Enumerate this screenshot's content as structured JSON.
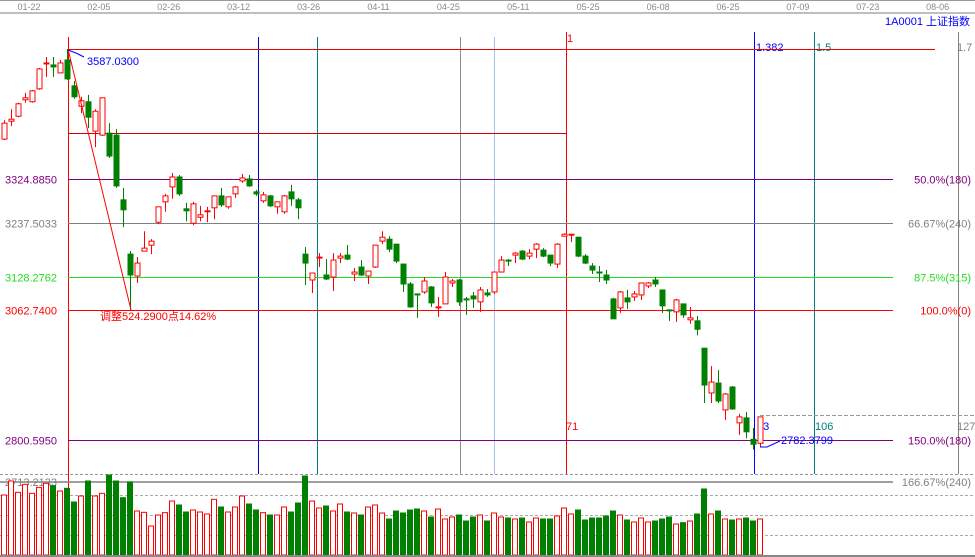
{
  "header": {
    "dates": [
      "01-22",
      "02-05",
      "02-26",
      "03-12",
      "03-26",
      "04-11",
      "04-25",
      "05-11",
      "05-25",
      "06-08",
      "06-25",
      "07-09",
      "07-23",
      "08-06"
    ],
    "symbol": "1A0001 上证指数"
  },
  "chart_data": {
    "type": "candlestick",
    "title": "1A0001 上证指数",
    "candle_fields": [
      "open",
      "close",
      "high",
      "low"
    ],
    "colors": {
      "up": "#ff0000",
      "down": "#008000",
      "annotation": "#0000ff"
    },
    "ylim": [
      2700,
      3600
    ],
    "grid": false,
    "price_levels": [
      {
        "price": 3324.885,
        "left_label": "3324.8850",
        "right_label": "50.0%(180)",
        "color": "#800080"
      },
      {
        "price": 3237.5033,
        "left_label": "3237.5033",
        "right_label": "66.67%(240)",
        "color": "#808080"
      },
      {
        "price": 3128.2762,
        "left_label": "3128.2762",
        "right_label": "87.5%(315)",
        "color": "#22dd22"
      },
      {
        "price": 3062.74,
        "left_label": "3062.7400",
        "right_label": "100.0%(0)",
        "color": "#ff0000"
      },
      {
        "price": 2800.595,
        "left_label": "2800.5950",
        "right_label": "150.0%(180)",
        "color": "#800080"
      },
      {
        "price": 2713.2133,
        "left_label": "2713.2133",
        "right_label": "166.67%(240)",
        "color": "#808080"
      }
    ],
    "time_lines": [
      {
        "top_label": "1",
        "bottom_label": "71",
        "color": "#ff0000"
      },
      {
        "top_label": "1.382",
        "bottom_label": "93",
        "color": "#0000ff"
      },
      {
        "top_label": "1.5",
        "bottom_label": "106",
        "color": "#008080"
      },
      {
        "top_label": "1.7",
        "bottom_label": "127",
        "color": "#808080"
      }
    ],
    "annotations": {
      "high_label": "3587.0300",
      "high_price": 3587.03,
      "low_label": "2782.3799",
      "low_price": 2782.3799,
      "drawdown_label": "调整524.2900点14.62%"
    },
    "candles": [
      [
        3406,
        3438,
        3444,
        3404
      ],
      [
        3442,
        3446,
        3466,
        3432
      ],
      [
        3452,
        3477,
        3479,
        3450
      ],
      [
        3485,
        3489,
        3499,
        3479
      ],
      [
        3481,
        3503,
        3505,
        3479
      ],
      [
        3507,
        3547,
        3549,
        3505
      ],
      [
        3557,
        3559,
        3571,
        3531
      ],
      [
        3555,
        3551,
        3571,
        3531
      ],
      [
        3539,
        3559,
        3565,
        3539
      ],
      [
        3565,
        3527,
        3587.03,
        3525
      ],
      [
        3513,
        3491,
        3523,
        3487
      ],
      [
        3472,
        3483,
        3491,
        3458
      ],
      [
        3481,
        3450,
        3495,
        3428
      ],
      [
        3422,
        3462,
        3466,
        3390
      ],
      [
        3414,
        3489,
        3489,
        3412
      ],
      [
        3418,
        3372,
        3438,
        3368
      ],
      [
        3414,
        3312,
        3426,
        3308
      ],
      [
        3284,
        3264,
        3308,
        3229
      ],
      [
        3175,
        3133,
        3181,
        3062.74
      ],
      [
        3131,
        3157,
        3169,
        3117
      ],
      [
        3181,
        3187,
        3221,
        3181
      ],
      [
        3193,
        3201,
        3205,
        3175
      ],
      [
        3239,
        3270,
        3270,
        3235
      ],
      [
        3280,
        3292,
        3296,
        3260
      ],
      [
        3310,
        3330,
        3338,
        3286
      ],
      [
        3330,
        3296,
        3334,
        3292
      ],
      [
        3266,
        3262,
        3278,
        3241
      ],
      [
        3237,
        3276,
        3280,
        3233
      ],
      [
        3249,
        3254,
        3272,
        3241
      ],
      [
        3261,
        3262,
        3270,
        3239
      ],
      [
        3268,
        3292,
        3292,
        3245
      ],
      [
        3292,
        3274,
        3308,
        3270
      ],
      [
        3270,
        3290,
        3290,
        3266
      ],
      [
        3296,
        3310,
        3312,
        3288
      ],
      [
        3322,
        3328,
        3336,
        3318
      ],
      [
        3326,
        3312,
        3334,
        3310
      ],
      [
        3300,
        3296,
        3304,
        3292
      ],
      [
        3282,
        3294,
        3300,
        3278
      ],
      [
        3292,
        3272,
        3294,
        3270
      ],
      [
        3270,
        3280,
        3280,
        3256
      ],
      [
        3260,
        3292,
        3294,
        3256
      ],
      [
        3300,
        3286,
        3314,
        3272
      ],
      [
        3284,
        3268,
        3288,
        3245
      ],
      [
        3175,
        3157,
        3189,
        3113
      ],
      [
        3123,
        3137,
        3137,
        3097
      ],
      [
        3167,
        3169,
        3177,
        3149
      ],
      [
        3133,
        3125,
        3165,
        3123
      ],
      [
        3129,
        3163,
        3177,
        3101
      ],
      [
        3167,
        3171,
        3177,
        3157
      ],
      [
        3173,
        3165,
        3193,
        3163
      ],
      [
        3135,
        3139,
        3147,
        3121
      ],
      [
        3149,
        3133,
        3163,
        3131
      ],
      [
        3131,
        3141,
        3141,
        3115
      ],
      [
        3149,
        3193,
        3193,
        3147
      ],
      [
        3201,
        3209,
        3221,
        3195
      ],
      [
        3205,
        3185,
        3211,
        3179
      ],
      [
        3195,
        3161,
        3195,
        3157
      ],
      [
        3155,
        3115,
        3155,
        3099
      ],
      [
        3115,
        3069,
        3119,
        3067
      ],
      [
        3095,
        3093,
        3095,
        3047
      ],
      [
        3099,
        3121,
        3129,
        3095
      ],
      [
        3109,
        3077,
        3111,
        3069
      ],
      [
        3067,
        3069,
        3089,
        3049
      ],
      [
        3075,
        3129,
        3139,
        3075
      ],
      [
        3117,
        3121,
        3125,
        3109
      ],
      [
        3123,
        3079,
        3125,
        3071
      ],
      [
        3085,
        3083,
        3089,
        3053
      ],
      [
        3091,
        3085,
        3099,
        3067
      ],
      [
        3079,
        3103,
        3109,
        3059
      ],
      [
        3097,
        3093,
        3105,
        3089
      ],
      [
        3099,
        3139,
        3139,
        3095
      ],
      [
        3139,
        3163,
        3171,
        3139
      ],
      [
        3163,
        3161,
        3165,
        3151
      ],
      [
        3173,
        3177,
        3179,
        3157
      ],
      [
        3181,
        3165,
        3183,
        3163
      ],
      [
        3171,
        3177,
        3185,
        3165
      ],
      [
        3185,
        3195,
        3197,
        3167
      ],
      [
        3183,
        3171,
        3187,
        3169
      ],
      [
        3173,
        3157,
        3173,
        3151
      ],
      [
        3155,
        3195,
        3197,
        3147
      ],
      [
        3211,
        3215,
        3217,
        3211
      ],
      [
        3213,
        3215,
        3215,
        3199
      ],
      [
        3209,
        3171,
        3209,
        3169
      ],
      [
        3171,
        3157,
        3175,
        3155
      ],
      [
        3151,
        3143,
        3157,
        3135
      ],
      [
        3139,
        3137,
        3151,
        3119
      ],
      [
        3133,
        3123,
        3143,
        3115
      ],
      [
        3085,
        3045,
        3087,
        3045
      ],
      [
        3067,
        3099,
        3101,
        3057
      ],
      [
        3087,
        3079,
        3103,
        3065
      ],
      [
        3089,
        3095,
        3101,
        3081
      ],
      [
        3093,
        3117,
        3117,
        3083
      ],
      [
        3111,
        3117,
        3119,
        3107
      ],
      [
        3123,
        3115,
        3129,
        3109
      ],
      [
        3103,
        3071,
        3103,
        3057
      ],
      [
        3063,
        3061,
        3063,
        3041
      ],
      [
        3059,
        3083,
        3085,
        3039
      ],
      [
        3075,
        3053,
        3075,
        3047
      ],
      [
        3043,
        3047,
        3069,
        3035
      ],
      [
        3041,
        3024,
        3051,
        3012
      ],
      [
        2986,
        2912,
        2986,
        2876
      ],
      [
        2896,
        2918,
        2950,
        2876
      ],
      [
        2916,
        2880,
        2942,
        2876
      ],
      [
        2862,
        2894,
        2896,
        2842
      ],
      [
        2908,
        2864,
        2910,
        2862
      ],
      [
        2836,
        2848,
        2854,
        2812
      ],
      [
        2846,
        2818,
        2858,
        2805
      ],
      [
        2803,
        2793,
        2826,
        2782.38
      ],
      [
        2795,
        2848,
        2848,
        2787
      ]
    ],
    "volume_relative": [
      180,
      222,
      188,
      212,
      185,
      203,
      215,
      208,
      192,
      200,
      159,
      177,
      222,
      177,
      185,
      240,
      222,
      172,
      219,
      132,
      128,
      87,
      120,
      127,
      162,
      150,
      129,
      135,
      129,
      123,
      167,
      144,
      129,
      144,
      177,
      153,
      135,
      127,
      120,
      120,
      144,
      129,
      156,
      237,
      162,
      141,
      147,
      132,
      153,
      129,
      126,
      120,
      144,
      150,
      126,
      108,
      132,
      126,
      135,
      138,
      132,
      114,
      138,
      108,
      114,
      120,
      102,
      114,
      120,
      102,
      126,
      114,
      111,
      108,
      111,
      99,
      111,
      108,
      108,
      117,
      141,
      123,
      135,
      105,
      111,
      111,
      117,
      132,
      120,
      105,
      99,
      111,
      99,
      102,
      108,
      114,
      93,
      97,
      102,
      123,
      198,
      123,
      132,
      108,
      105,
      108,
      111,
      102,
      108
    ]
  }
}
